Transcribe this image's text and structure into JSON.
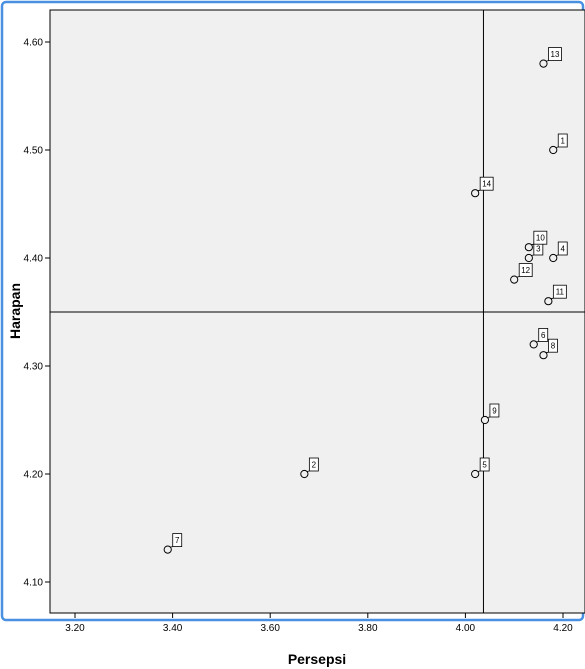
{
  "chart_data": {
    "type": "scatter",
    "xlabel": "Persepsi",
    "ylabel": "Harapan",
    "xlim": [
      3.15,
      4.25
    ],
    "ylim": [
      4.08,
      4.63
    ],
    "x_ticks": [
      "3.20",
      "3.40",
      "3.60",
      "3.80",
      "4.00",
      "4.20"
    ],
    "y_ticks": [
      "4.10",
      "4.20",
      "4.30",
      "4.40",
      "4.50",
      "4.60"
    ],
    "reference_lines": {
      "x": 4.037,
      "y": 4.35
    },
    "points": [
      {
        "label": "1",
        "x": 4.18,
        "y": 4.5
      },
      {
        "label": "2",
        "x": 3.67,
        "y": 4.2
      },
      {
        "label": "3",
        "x": 4.13,
        "y": 4.4
      },
      {
        "label": "4",
        "x": 4.18,
        "y": 4.4
      },
      {
        "label": "5",
        "x": 4.02,
        "y": 4.2
      },
      {
        "label": "6",
        "x": 4.14,
        "y": 4.32
      },
      {
        "label": "7",
        "x": 3.39,
        "y": 4.13
      },
      {
        "label": "8",
        "x": 4.16,
        "y": 4.31
      },
      {
        "label": "9",
        "x": 4.04,
        "y": 4.25
      },
      {
        "label": "10",
        "x": 4.13,
        "y": 4.41
      },
      {
        "label": "11",
        "x": 4.17,
        "y": 4.36
      },
      {
        "label": "12",
        "x": 4.1,
        "y": 4.38
      },
      {
        "label": "13",
        "x": 4.16,
        "y": 4.58
      },
      {
        "label": "14",
        "x": 4.02,
        "y": 4.46
      }
    ],
    "grid": false,
    "colors": {
      "background": "#f0f0f0",
      "frame": "#4a90e2",
      "marker": "#000000"
    }
  }
}
